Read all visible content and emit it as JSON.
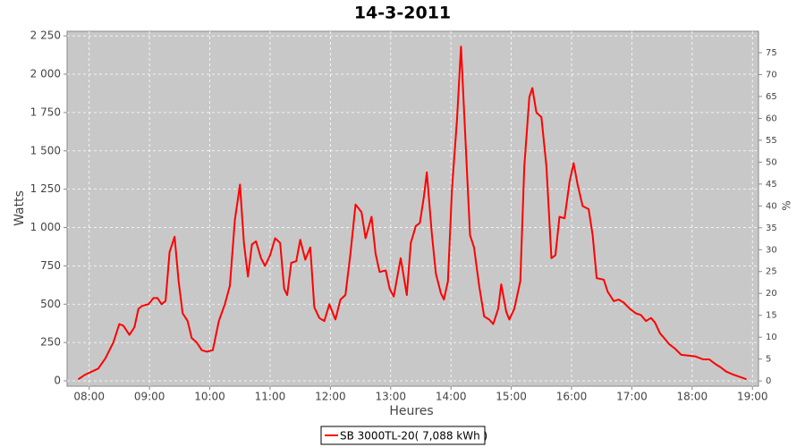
{
  "chart_data": {
    "type": "line",
    "title": "14-3-2011",
    "x_label": "Heures",
    "y_label": "Watts",
    "y2_label": "%",
    "x": [
      "07:49",
      "07:56",
      "08:09",
      "08:16",
      "08:24",
      "08:30",
      "08:34",
      "08:40",
      "08:45",
      "08:49",
      "08:53",
      "08:59",
      "09:04",
      "09:08",
      "09:12",
      "09:16",
      "09:20",
      "09:25",
      "09:29",
      "09:33",
      "09:38",
      "09:42",
      "09:47",
      "09:52",
      "09:57",
      "10:03",
      "10:09",
      "10:15",
      "10:20",
      "10:25",
      "10:30",
      "10:34",
      "10:38",
      "10:42",
      "10:46",
      "10:51",
      "10:55",
      "11:00",
      "11:05",
      "11:10",
      "11:14",
      "11:17",
      "11:21",
      "11:26",
      "11:30",
      "11:35",
      "11:40",
      "11:44",
      "11:49",
      "11:54",
      "11:59",
      "12:05",
      "12:10",
      "12:15",
      "12:20",
      "12:25",
      "12:31",
      "12:35",
      "12:41",
      "12:45",
      "12:49",
      "12:55",
      "12:59",
      "13:03",
      "13:10",
      "13:16",
      "13:20",
      "13:25",
      "13:29",
      "13:33",
      "13:36",
      "13:41",
      "13:45",
      "13:50",
      "13:53",
      "13:57",
      "14:01",
      "14:06",
      "14:10",
      "14:15",
      "14:19",
      "14:23",
      "14:28",
      "14:33",
      "14:38",
      "14:42",
      "14:47",
      "14:50",
      "14:55",
      "14:58",
      "15:03",
      "15:09",
      "15:13",
      "15:18",
      "15:21",
      "15:25",
      "15:30",
      "15:35",
      "15:40",
      "15:44",
      "15:48",
      "15:53",
      "15:58",
      "16:02",
      "16:06",
      "16:11",
      "16:17",
      "16:21",
      "16:25",
      "16:32",
      "16:36",
      "16:42",
      "16:47",
      "16:52",
      "16:58",
      "17:04",
      "17:09",
      "17:14",
      "17:19",
      "17:23",
      "17:28",
      "17:32",
      "17:37",
      "17:43",
      "17:49",
      "17:56",
      "18:03",
      "18:11",
      "18:17",
      "18:23",
      "18:28",
      "18:34",
      "18:41",
      "18:50",
      "18:54"
    ],
    "series": [
      {
        "name": "SB 3000TL-20( 7,088 kWh )",
        "color": "#ff0000",
        "values": [
          10,
          40,
          80,
          145,
          250,
          370,
          360,
          300,
          350,
          470,
          490,
          500,
          540,
          540,
          500,
          520,
          840,
          940,
          650,
          440,
          390,
          280,
          250,
          200,
          190,
          200,
          390,
          500,
          620,
          1050,
          1280,
          900,
          680,
          890,
          910,
          800,
          750,
          820,
          930,
          900,
          600,
          560,
          770,
          780,
          920,
          790,
          870,
          480,
          410,
          390,
          500,
          400,
          530,
          560,
          830,
          1150,
          1100,
          930,
          1070,
          830,
          710,
          720,
          600,
          550,
          800,
          560,
          900,
          1010,
          1030,
          1200,
          1360,
          960,
          700,
          570,
          530,
          650,
          1250,
          1700,
          2180,
          1500,
          950,
          870,
          620,
          420,
          400,
          370,
          470,
          630,
          450,
          400,
          470,
          650,
          1400,
          1850,
          1910,
          1750,
          1720,
          1400,
          800,
          820,
          1070,
          1060,
          1300,
          1420,
          1280,
          1140,
          1120,
          950,
          670,
          660,
          580,
          520,
          530,
          510,
          470,
          440,
          430,
          390,
          410,
          380,
          310,
          280,
          240,
          210,
          170,
          165,
          160,
          140,
          140,
          110,
          90,
          60,
          40,
          20,
          10
        ]
      }
    ],
    "xlim": [
      "07:38",
      "19:06"
    ],
    "xticks": [
      "08:00",
      "09:00",
      "10:00",
      "11:00",
      "12:00",
      "13:00",
      "14:00",
      "15:00",
      "16:00",
      "17:00",
      "18:00",
      "19:00"
    ],
    "ylim": [
      -35,
      2280
    ],
    "yticks": [
      0,
      250,
      500,
      750,
      {
        "value": 1000,
        "label": "1 000"
      },
      {
        "value": 1250,
        "label": "1 250"
      },
      {
        "value": 1500,
        "label": "1 500"
      },
      {
        "value": 1750,
        "label": "1 750"
      },
      {
        "value": 2000,
        "label": "2 000"
      },
      {
        "value": 2250,
        "label": "2 250"
      }
    ],
    "y2lim": [
      -1.2,
      79.9
    ],
    "y2ticks": [
      0,
      5,
      10,
      15,
      20,
      25,
      30,
      35,
      40,
      45,
      50,
      55,
      60,
      65,
      70,
      75
    ],
    "grid": true
  }
}
